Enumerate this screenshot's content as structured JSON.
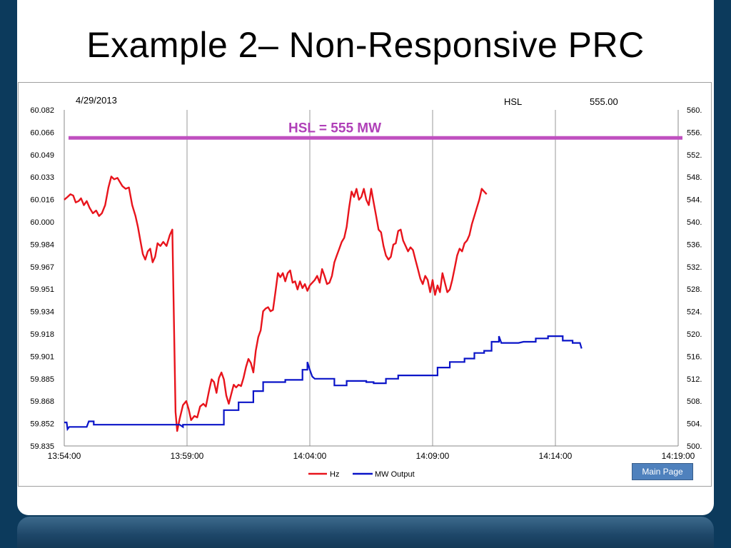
{
  "slide": {
    "title": "Example 2– Non-Responsive PRC"
  },
  "header": {
    "date": "4/29/2013",
    "hsl_label": "HSL",
    "hsl_value": "555.00",
    "hsl_annotation": "HSL = 555 MW"
  },
  "button": {
    "main_page_label": "Main Page"
  },
  "colors": {
    "hz": "#e8141c",
    "mw": "#0a14c8",
    "hsl": "#c050c0",
    "annotation": "#b040b8"
  },
  "chart_data": {
    "type": "line",
    "x_ticks": [
      "13:54:00",
      "13:59:00",
      "14:04:00",
      "14:09:00",
      "14:14:00",
      "14:19:00"
    ],
    "x_range": [
      "13:54:00",
      "14:19:00"
    ],
    "y_left_ticks": [
      "60.082",
      "60.066",
      "60.049",
      "60.033",
      "60.016",
      "60.000",
      "59.984",
      "59.967",
      "59.951",
      "59.934",
      "59.918",
      "59.901",
      "59.885",
      "59.868",
      "59.852",
      "59.835"
    ],
    "y_left_range": [
      59.835,
      60.082
    ],
    "y_right_ticks": [
      "560.",
      "556.",
      "552.",
      "548.",
      "544.",
      "540.",
      "536.",
      "532.",
      "528.",
      "524.",
      "520.",
      "516.",
      "512.",
      "508.",
      "504.",
      "500."
    ],
    "y_right_range": [
      500,
      560
    ],
    "grid": "vertical",
    "legend_position": "bottom-center",
    "series": [
      {
        "name": "Hz",
        "axis": "left",
        "points": [
          [
            "13:54:00",
            60.016
          ],
          [
            "13:54:08",
            60.018
          ],
          [
            "13:54:15",
            60.02
          ],
          [
            "13:54:22",
            60.019
          ],
          [
            "13:54:28",
            60.014
          ],
          [
            "13:54:35",
            60.015
          ],
          [
            "13:54:41",
            60.017
          ],
          [
            "13:54:48",
            60.012
          ],
          [
            "13:54:55",
            60.015
          ],
          [
            "13:55:02",
            60.01
          ],
          [
            "13:55:10",
            60.006
          ],
          [
            "13:55:18",
            60.008
          ],
          [
            "13:55:25",
            60.004
          ],
          [
            "13:55:32",
            60.006
          ],
          [
            "13:55:40",
            60.012
          ],
          [
            "13:55:48",
            60.025
          ],
          [
            "13:55:55",
            60.033
          ],
          [
            "13:56:02",
            60.031
          ],
          [
            "13:56:10",
            60.032
          ],
          [
            "13:56:16",
            60.029
          ],
          [
            "13:56:22",
            60.026
          ],
          [
            "13:56:30",
            60.024
          ],
          [
            "13:56:38",
            60.025
          ],
          [
            "13:56:46",
            60.012
          ],
          [
            "13:56:54",
            60.004
          ],
          [
            "13:57:00",
            59.996
          ],
          [
            "13:57:06",
            59.986
          ],
          [
            "13:57:12",
            59.976
          ],
          [
            "13:57:18",
            59.972
          ],
          [
            "13:57:24",
            59.978
          ],
          [
            "13:57:30",
            59.98
          ],
          [
            "13:57:36",
            59.97
          ],
          [
            "13:57:42",
            59.974
          ],
          [
            "13:57:48",
            59.984
          ],
          [
            "13:57:55",
            59.982
          ],
          [
            "13:58:02",
            59.985
          ],
          [
            "13:58:10",
            59.982
          ],
          [
            "13:58:18",
            59.99
          ],
          [
            "13:58:24",
            59.994
          ],
          [
            "13:58:32",
            59.86
          ],
          [
            "13:58:36",
            59.846
          ],
          [
            "13:58:42",
            59.855
          ],
          [
            "13:58:50",
            59.865
          ],
          [
            "13:58:58",
            59.868
          ],
          [
            "13:59:04",
            59.862
          ],
          [
            "13:59:10",
            59.854
          ],
          [
            "13:59:18",
            59.857
          ],
          [
            "13:59:25",
            59.856
          ],
          [
            "13:59:32",
            59.864
          ],
          [
            "13:59:40",
            59.866
          ],
          [
            "13:59:46",
            59.864
          ],
          [
            "13:59:54",
            59.876
          ],
          [
            "14:00:00",
            59.884
          ],
          [
            "14:00:06",
            59.882
          ],
          [
            "14:00:12",
            59.874
          ],
          [
            "14:00:18",
            59.885
          ],
          [
            "14:00:24",
            59.889
          ],
          [
            "14:00:30",
            59.884
          ],
          [
            "14:00:36",
            59.872
          ],
          [
            "14:00:42",
            59.866
          ],
          [
            "14:00:48",
            59.873
          ],
          [
            "14:00:54",
            59.88
          ],
          [
            "14:01:00",
            59.878
          ],
          [
            "14:01:06",
            59.88
          ],
          [
            "14:01:12",
            59.879
          ],
          [
            "14:01:18",
            59.885
          ],
          [
            "14:01:24",
            59.893
          ],
          [
            "14:01:30",
            59.899
          ],
          [
            "14:01:36",
            59.896
          ],
          [
            "14:01:42",
            59.889
          ],
          [
            "14:01:48",
            59.905
          ],
          [
            "14:01:54",
            59.915
          ],
          [
            "14:02:00",
            59.92
          ],
          [
            "14:02:06",
            59.934
          ],
          [
            "14:02:12",
            59.936
          ],
          [
            "14:02:18",
            59.937
          ],
          [
            "14:02:24",
            59.934
          ],
          [
            "14:02:30",
            59.935
          ],
          [
            "14:02:36",
            59.948
          ],
          [
            "14:02:42",
            59.962
          ],
          [
            "14:02:48",
            59.959
          ],
          [
            "14:02:54",
            59.962
          ],
          [
            "14:03:00",
            59.956
          ],
          [
            "14:03:06",
            59.962
          ],
          [
            "14:03:12",
            59.964
          ],
          [
            "14:03:18",
            59.955
          ],
          [
            "14:03:24",
            59.956
          ],
          [
            "14:03:30",
            59.95
          ],
          [
            "14:03:36",
            59.956
          ],
          [
            "14:03:42",
            59.951
          ],
          [
            "14:03:48",
            59.954
          ],
          [
            "14:03:54",
            59.949
          ],
          [
            "14:04:00",
            59.953
          ],
          [
            "14:04:06",
            59.955
          ],
          [
            "14:04:12",
            59.957
          ],
          [
            "14:04:18",
            59.96
          ],
          [
            "14:04:24",
            59.955
          ],
          [
            "14:04:30",
            59.965
          ],
          [
            "14:04:36",
            59.96
          ],
          [
            "14:04:42",
            59.954
          ],
          [
            "14:04:48",
            59.955
          ],
          [
            "14:04:54",
            59.96
          ],
          [
            "14:05:00",
            59.97
          ],
          [
            "14:05:06",
            59.975
          ],
          [
            "14:05:12",
            59.98
          ],
          [
            "14:05:18",
            59.985
          ],
          [
            "14:05:24",
            59.988
          ],
          [
            "14:05:30",
            59.996
          ],
          [
            "14:05:36",
            60.01
          ],
          [
            "14:05:42",
            60.022
          ],
          [
            "14:05:48",
            60.018
          ],
          [
            "14:05:54",
            60.024
          ],
          [
            "14:06:00",
            60.016
          ],
          [
            "14:06:06",
            60.018
          ],
          [
            "14:06:12",
            60.024
          ],
          [
            "14:06:18",
            60.016
          ],
          [
            "14:06:24",
            60.012
          ],
          [
            "14:06:30",
            60.024
          ],
          [
            "14:06:36",
            60.014
          ],
          [
            "14:06:42",
            60.004
          ],
          [
            "14:06:48",
            59.994
          ],
          [
            "14:06:54",
            59.992
          ],
          [
            "14:07:00",
            59.982
          ],
          [
            "14:07:06",
            59.975
          ],
          [
            "14:07:12",
            59.972
          ],
          [
            "14:07:18",
            59.974
          ],
          [
            "14:07:24",
            59.983
          ],
          [
            "14:07:30",
            59.984
          ],
          [
            "14:07:36",
            59.993
          ],
          [
            "14:07:42",
            59.994
          ],
          [
            "14:07:48",
            59.986
          ],
          [
            "14:07:54",
            59.982
          ],
          [
            "14:08:00",
            59.978
          ],
          [
            "14:08:06",
            59.981
          ],
          [
            "14:08:12",
            59.979
          ],
          [
            "14:08:18",
            59.972
          ],
          [
            "14:08:24",
            59.965
          ],
          [
            "14:08:30",
            59.958
          ],
          [
            "14:08:36",
            59.954
          ],
          [
            "14:08:42",
            59.96
          ],
          [
            "14:08:48",
            59.957
          ],
          [
            "14:08:54",
            59.948
          ],
          [
            "14:09:00",
            59.957
          ],
          [
            "14:09:06",
            59.946
          ],
          [
            "14:09:12",
            59.953
          ],
          [
            "14:09:18",
            59.948
          ],
          [
            "14:09:24",
            59.962
          ],
          [
            "14:09:30",
            59.955
          ],
          [
            "14:09:36",
            59.948
          ],
          [
            "14:09:42",
            59.95
          ],
          [
            "14:09:48",
            59.957
          ],
          [
            "14:09:54",
            59.966
          ],
          [
            "14:10:00",
            59.975
          ],
          [
            "14:10:06",
            59.98
          ],
          [
            "14:10:12",
            59.978
          ],
          [
            "14:10:18",
            59.984
          ],
          [
            "14:10:24",
            59.986
          ],
          [
            "14:10:30",
            59.99
          ],
          [
            "14:10:36",
            59.998
          ],
          [
            "14:10:42",
            60.004
          ],
          [
            "14:10:48",
            60.01
          ],
          [
            "14:10:54",
            60.016
          ],
          [
            "14:11:00",
            60.024
          ],
          [
            "14:11:06",
            60.022
          ],
          [
            "14:11:12",
            60.02
          ]
        ]
      },
      {
        "name": "MW Output",
        "axis": "right",
        "points": [
          [
            "13:54:00",
            504.2
          ],
          [
            "13:54:06",
            504.2
          ],
          [
            "13:54:08",
            503.0
          ],
          [
            "13:54:12",
            503.4
          ],
          [
            "13:54:55",
            503.4
          ],
          [
            "13:55:00",
            504.4
          ],
          [
            "13:55:12",
            504.4
          ],
          [
            "13:55:12",
            503.8
          ],
          [
            "13:58:42",
            503.8
          ],
          [
            "13:58:50",
            503.4
          ],
          [
            "13:58:50",
            503.8
          ],
          [
            "14:00:30",
            503.8
          ],
          [
            "14:00:30",
            506.4
          ],
          [
            "14:01:06",
            506.4
          ],
          [
            "14:01:06",
            507.8
          ],
          [
            "14:01:42",
            507.8
          ],
          [
            "14:01:42",
            509.8
          ],
          [
            "14:02:06",
            509.8
          ],
          [
            "14:02:06",
            511.4
          ],
          [
            "14:03:00",
            511.4
          ],
          [
            "14:03:00",
            511.8
          ],
          [
            "14:03:42",
            511.8
          ],
          [
            "14:03:42",
            513.6
          ],
          [
            "14:03:54",
            513.6
          ],
          [
            "14:03:54",
            515.0
          ],
          [
            "14:04:00",
            513.6
          ],
          [
            "14:04:06",
            512.4
          ],
          [
            "14:04:12",
            512.0
          ],
          [
            "14:05:00",
            512.0
          ],
          [
            "14:05:00",
            510.8
          ],
          [
            "14:05:30",
            510.8
          ],
          [
            "14:05:30",
            511.6
          ],
          [
            "14:06:18",
            511.6
          ],
          [
            "14:06:18",
            511.4
          ],
          [
            "14:06:36",
            511.4
          ],
          [
            "14:06:36",
            511.2
          ],
          [
            "14:07:06",
            511.2
          ],
          [
            "14:07:06",
            512.0
          ],
          [
            "14:07:36",
            512.0
          ],
          [
            "14:07:36",
            512.6
          ],
          [
            "14:09:12",
            512.6
          ],
          [
            "14:09:12",
            514.0
          ],
          [
            "14:09:42",
            514.0
          ],
          [
            "14:09:42",
            515.0
          ],
          [
            "14:10:18",
            515.0
          ],
          [
            "14:10:18",
            515.6
          ],
          [
            "14:10:42",
            515.6
          ],
          [
            "14:10:42",
            516.6
          ],
          [
            "14:11:06",
            516.6
          ],
          [
            "14:11:06",
            517.0
          ],
          [
            "14:11:24",
            517.0
          ],
          [
            "14:11:24",
            518.6
          ],
          [
            "14:11:42",
            518.6
          ],
          [
            "14:11:42",
            519.6
          ],
          [
            "14:11:48",
            518.4
          ],
          [
            "14:12:30",
            518.4
          ],
          [
            "14:12:42",
            518.6
          ],
          [
            "14:13:12",
            518.6
          ],
          [
            "14:13:12",
            519.2
          ],
          [
            "14:13:42",
            519.2
          ],
          [
            "14:13:42",
            519.6
          ],
          [
            "14:14:18",
            519.6
          ],
          [
            "14:14:18",
            518.8
          ],
          [
            "14:14:42",
            518.8
          ],
          [
            "14:14:42",
            518.4
          ],
          [
            "14:15:00",
            518.4
          ],
          [
            "14:15:04",
            517.4
          ]
        ]
      }
    ],
    "hsl_line": {
      "axis": "right",
      "value": 555
    }
  }
}
